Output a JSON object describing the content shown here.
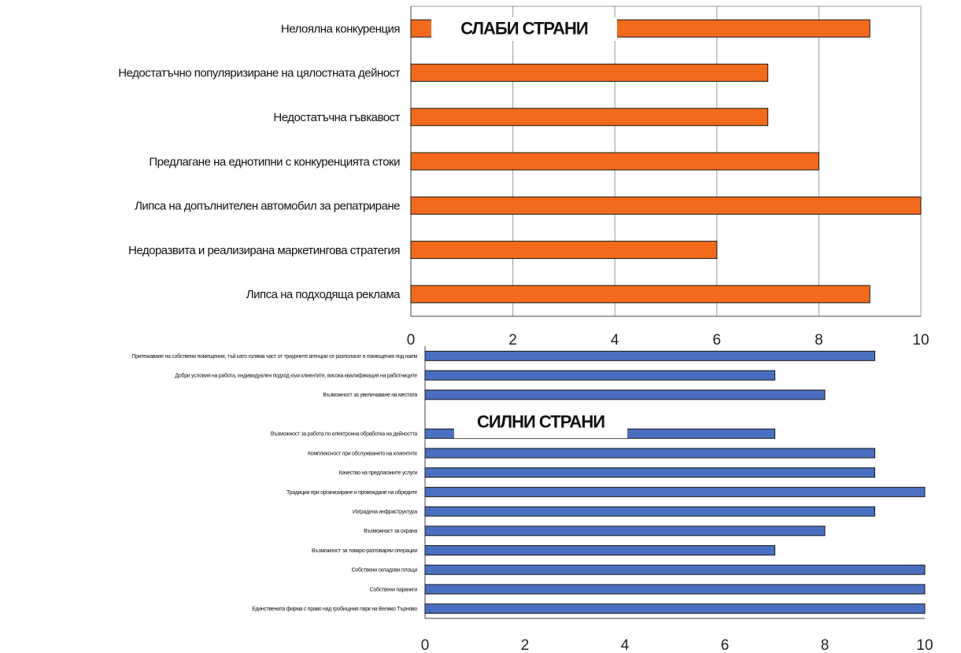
{
  "chart_data": [
    {
      "type": "bar",
      "orientation": "horizontal",
      "title": "СЛАБИ СТРАНИ",
      "categories": [
        "Нелоялна конкуренция",
        "Недостатъчно популяризиране на цялостната дейност",
        "Недостатъчна гъвкавост",
        "Предлагане на еднотипни с конкуренцията стоки",
        "Липса на допълнителен автомобил за репатриране",
        "Недоразвита и реализирана маркетингова стратегия",
        "Липса на подходяща реклама"
      ],
      "values": [
        9,
        7,
        7,
        8,
        10,
        6,
        9
      ],
      "xlim": [
        0,
        10
      ],
      "xticks": [
        "0",
        "2",
        "4",
        "6",
        "8",
        "10"
      ],
      "color": "#f26a1b",
      "grid": true
    },
    {
      "type": "bar",
      "orientation": "horizontal",
      "title": "СИЛНИ СТРАНИ",
      "categories": [
        "Притежаване на собствени помещения, тъй като голяма част от траурните агенции се разполагат в помещения под наем",
        "Добри условия на работа, индивидуален подход към клиентите, висока квалификация на работниците",
        "Възможност за увеличаване на местата",
        "",
        "Възможност за работа по електронна обработка на дейността",
        "Комплексност при обслужването на клиентите",
        "Качество на предлаганите услуги",
        "Традиции при организиране и провеждане на обредите",
        "Изградена инфраструктура",
        "Възможност за охрана",
        "Възможност за товаро-разтоварни операции",
        "Собствени складови площи",
        "Собствени паркинги",
        "Единствената фирма с право над гробищния парк на Велико Търново"
      ],
      "values": [
        9,
        7,
        8,
        null,
        7,
        9,
        9,
        10,
        9,
        8,
        7,
        10,
        10,
        10
      ],
      "xlim": [
        0,
        10
      ],
      "xticks": [
        "0",
        "2",
        "4",
        "6",
        "8",
        "10"
      ],
      "color": "#4a6fc0",
      "grid": false
    }
  ]
}
